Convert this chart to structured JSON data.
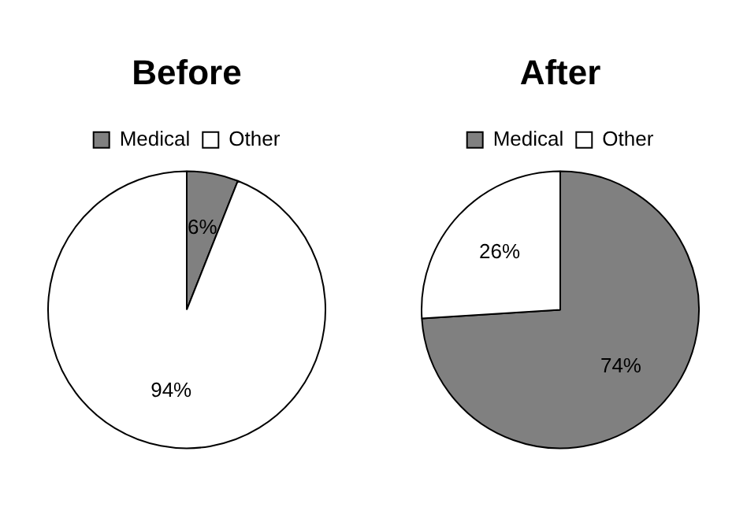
{
  "chart_data": [
    {
      "type": "pie",
      "title": "Before",
      "categories": [
        "Medical",
        "Other"
      ],
      "values": [
        6,
        94
      ],
      "colors": [
        "#808080",
        "#ffffff"
      ],
      "value_labels": [
        "6%",
        "94%"
      ],
      "legend": "top"
    },
    {
      "type": "pie",
      "title": "After",
      "categories": [
        "Medical",
        "Other"
      ],
      "values": [
        74,
        26
      ],
      "colors": [
        "#808080",
        "#ffffff"
      ],
      "value_labels": [
        "74%",
        "26%"
      ],
      "legend": "top"
    }
  ]
}
